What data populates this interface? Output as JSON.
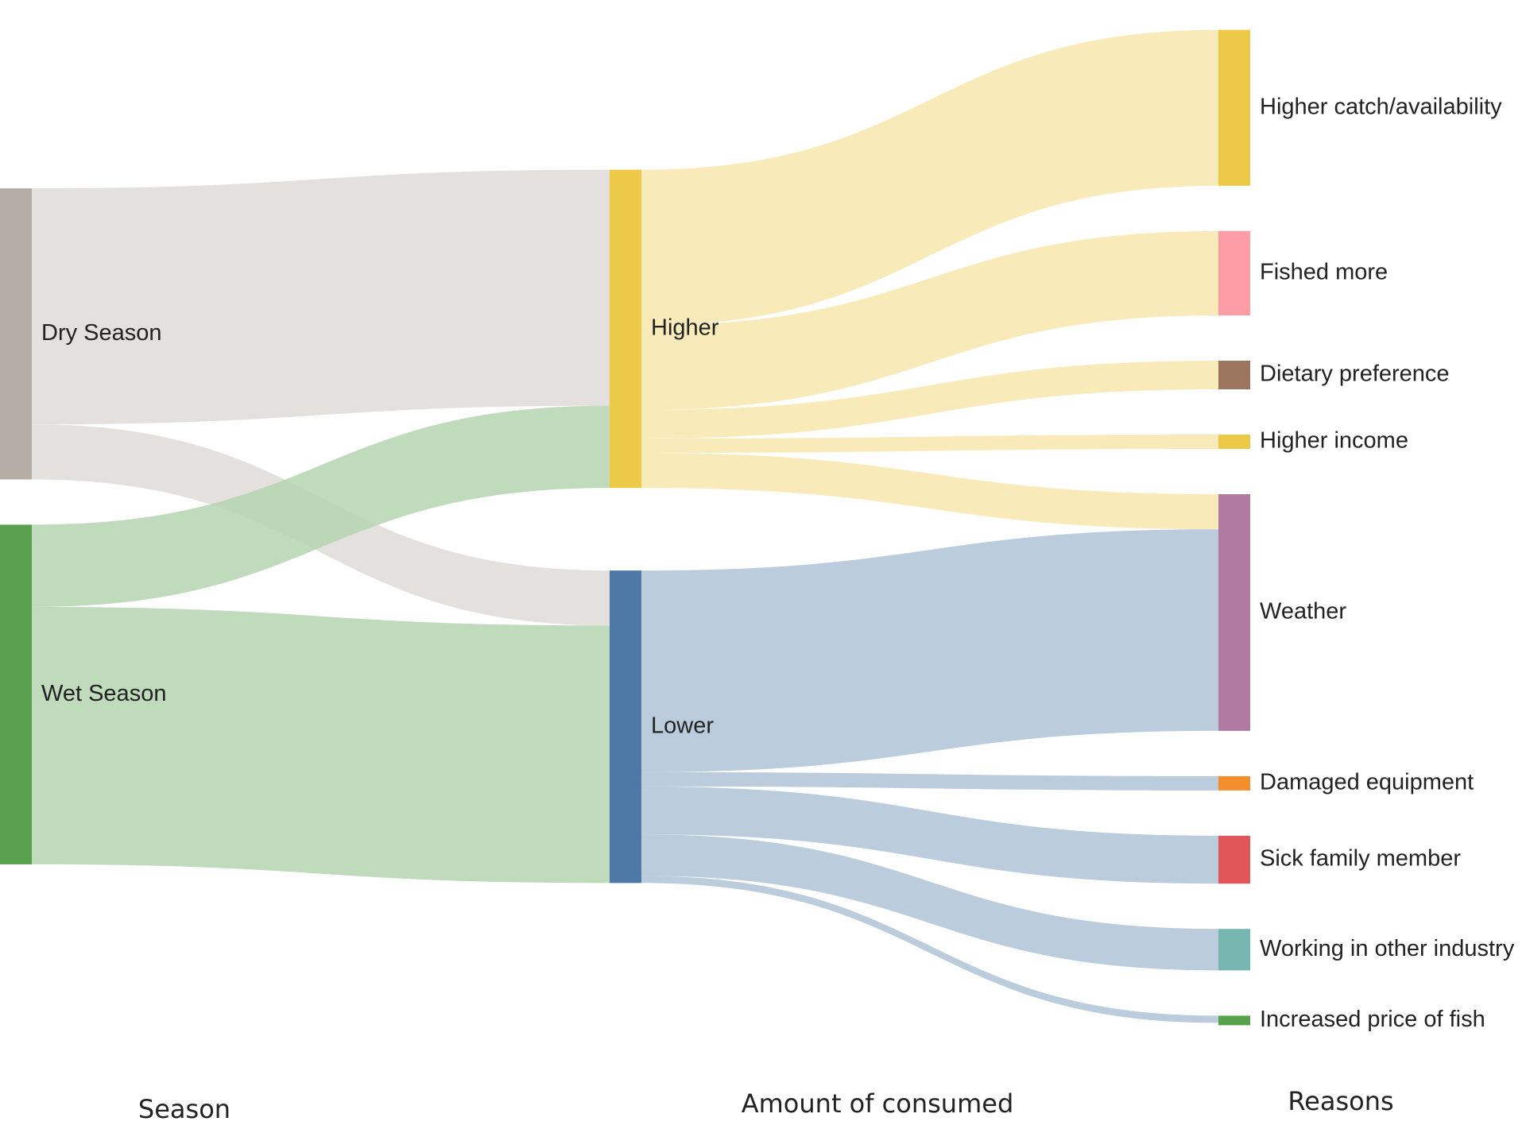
{
  "chart_data": {
    "type": "sankey",
    "columns": [
      "Season",
      "Amount of consumed",
      "Reasons"
    ],
    "nodes": [
      {
        "id": "dry",
        "label": "Dry Season",
        "column": 0,
        "color": "#b5aca6"
      },
      {
        "id": "wet",
        "label": "Wet Season",
        "column": 0,
        "color": "#59a14f"
      },
      {
        "id": "higher",
        "label": "Higher",
        "column": 1,
        "color": "#edc948"
      },
      {
        "id": "lower",
        "label": "Lower",
        "column": 1,
        "color": "#4e79a7"
      },
      {
        "id": "catch",
        "label": "Higher catch/availability",
        "column": 2,
        "color": "#edc948"
      },
      {
        "id": "fished",
        "label": "Fished more",
        "column": 2,
        "color": "#ff9da7"
      },
      {
        "id": "diet",
        "label": "Dietary preference",
        "column": 2,
        "color": "#9c755f"
      },
      {
        "id": "income",
        "label": "Higher income",
        "column": 2,
        "color": "#edc948"
      },
      {
        "id": "weather",
        "label": "Weather",
        "column": 2,
        "color": "#b07aa1"
      },
      {
        "id": "damaged",
        "label": "Damaged equipment",
        "column": 2,
        "color": "#f28e2b"
      },
      {
        "id": "sick",
        "label": "Sick family member",
        "column": 2,
        "color": "#e15759"
      },
      {
        "id": "working",
        "label": "Working in other industry",
        "column": 2,
        "color": "#76b7b2"
      },
      {
        "id": "price",
        "label": "Increased price of fish",
        "column": 2,
        "color": "#59a14f"
      }
    ],
    "links": [
      {
        "source": "dry",
        "target": "higher",
        "value": 330
      },
      {
        "source": "dry",
        "target": "lower",
        "value": 77
      },
      {
        "source": "wet",
        "target": "higher",
        "value": 115
      },
      {
        "source": "wet",
        "target": "lower",
        "value": 360
      },
      {
        "source": "higher",
        "target": "catch",
        "value": 218
      },
      {
        "source": "higher",
        "target": "fished",
        "value": 118
      },
      {
        "source": "higher",
        "target": "diet",
        "value": 40
      },
      {
        "source": "higher",
        "target": "income",
        "value": 20
      },
      {
        "source": "higher",
        "target": "weather",
        "value": 49
      },
      {
        "source": "lower",
        "target": "weather",
        "value": 282
      },
      {
        "source": "lower",
        "target": "damaged",
        "value": 20
      },
      {
        "source": "lower",
        "target": "sick",
        "value": 67
      },
      {
        "source": "lower",
        "target": "working",
        "value": 58
      },
      {
        "source": "lower",
        "target": "price",
        "value": 10
      }
    ]
  }
}
